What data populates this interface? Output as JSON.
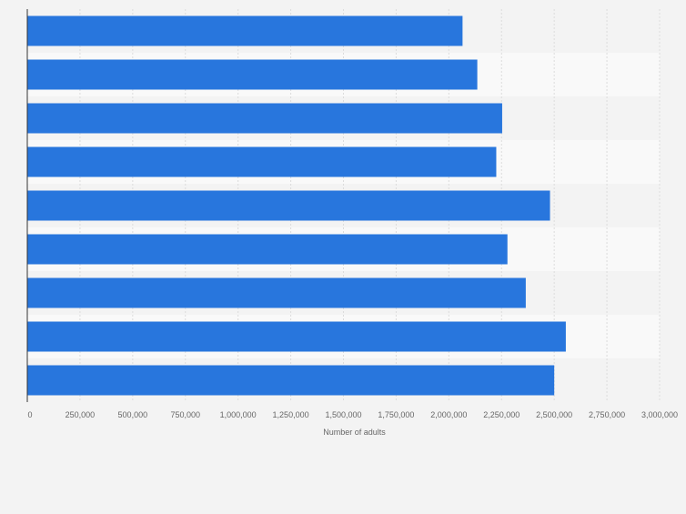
{
  "colors": {
    "bar": "#2876dd",
    "band_light": "#f9f9f9",
    "band_dark": "#f3f3f3",
    "grid": "#dcdcdc",
    "axis": "#333333"
  },
  "chart_data": {
    "type": "bar",
    "orientation": "horizontal",
    "title": "",
    "xlabel": "Number of adults",
    "ylabel": "",
    "categories": [
      "",
      "",
      "",
      "",
      "",
      "",
      "",
      "",
      ""
    ],
    "values": [
      2065000,
      2135000,
      2253000,
      2225000,
      2480000,
      2278000,
      2365000,
      2555000,
      2500000
    ],
    "xlim": [
      0,
      3000000
    ],
    "ticks": [
      0,
      250000,
      500000,
      750000,
      1000000,
      1250000,
      1500000,
      1750000,
      2000000,
      2250000,
      2500000,
      2750000,
      3000000
    ],
    "tick_labels": [
      "0",
      "250,000",
      "500,000",
      "750,000",
      "1,000,000",
      "1,250,000",
      "1,500,000",
      "1,750,000",
      "2,000,000",
      "2,250,000",
      "2,500,000",
      "2,750,000",
      "3,000,000"
    ],
    "grid": true,
    "legend": "none"
  }
}
